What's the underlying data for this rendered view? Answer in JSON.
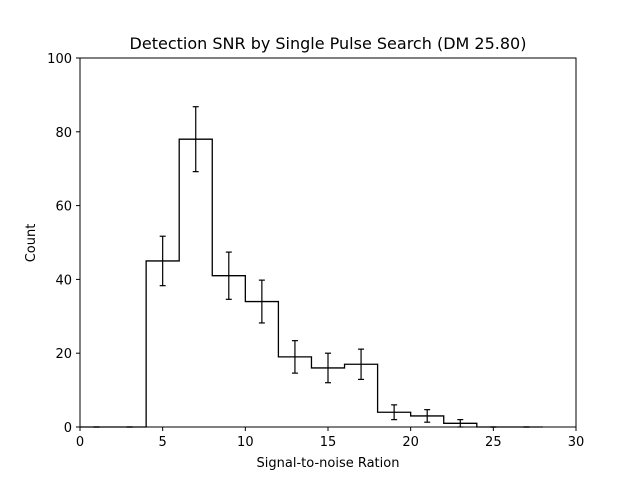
{
  "chart_data": {
    "type": "bar",
    "title": "Detection SNR by Single Pulse Search (DM 25.80)",
    "xlabel": "Signal-to-noise Ration",
    "ylabel": "Count",
    "xlim": [
      0,
      30
    ],
    "ylim": [
      0,
      100
    ],
    "xticks": [
      0,
      5,
      10,
      15,
      20,
      25,
      30
    ],
    "yticks": [
      0,
      20,
      40,
      60,
      80,
      100
    ],
    "grid": false,
    "histtype": "step",
    "bin_edges": [
      0,
      2,
      4,
      6,
      8,
      10,
      12,
      14,
      16,
      18,
      20,
      22,
      24,
      26,
      28
    ],
    "values": [
      0,
      0,
      45,
      78,
      41,
      34,
      19,
      16,
      17,
      4,
      3,
      1,
      0,
      0
    ],
    "errors": [
      0,
      0,
      6.7,
      8.8,
      6.4,
      5.8,
      4.4,
      4.0,
      4.1,
      2.0,
      1.7,
      1.0,
      0,
      0
    ],
    "colors": {
      "line": "#000000",
      "background": "#ffffff"
    }
  }
}
